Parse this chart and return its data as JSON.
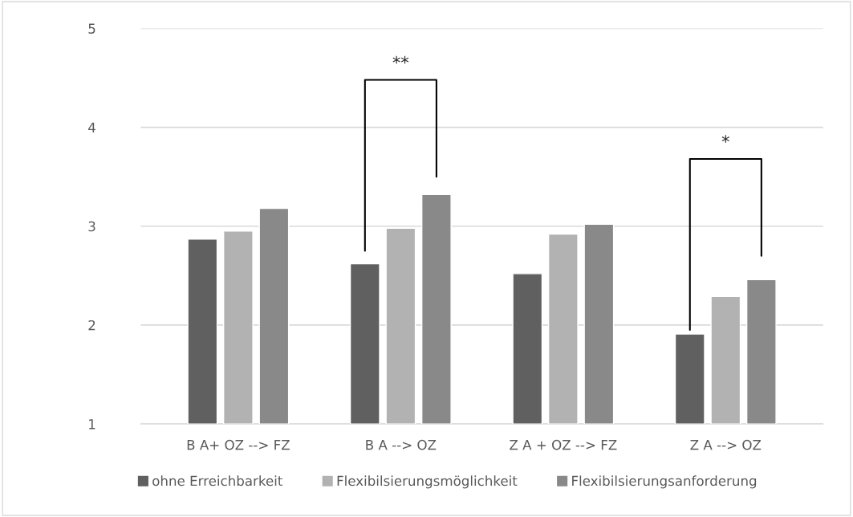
{
  "chart_data": {
    "type": "bar",
    "categories": [
      "B A+ OZ --> FZ",
      "B A --> OZ",
      "Z A + OZ --> FZ",
      "Z A --> OZ"
    ],
    "series": [
      {
        "name": "ohne Erreichbarkeit",
        "color": "#606060",
        "values": [
          2.87,
          2.62,
          2.52,
          1.91
        ]
      },
      {
        "name": "Flexibilsierungsmöglichkeit",
        "color": "#b2b2b2",
        "values": [
          2.95,
          2.98,
          2.92,
          2.29
        ]
      },
      {
        "name": "Flexibilsierungsanforderung",
        "color": "#898989",
        "values": [
          3.18,
          3.32,
          3.02,
          2.46
        ]
      }
    ],
    "ylim": [
      1,
      5
    ],
    "yticks": [
      1,
      2,
      3,
      4,
      5
    ],
    "grid": "y",
    "legend": "bottom",
    "annotations": [
      "**",
      "*"
    ]
  }
}
